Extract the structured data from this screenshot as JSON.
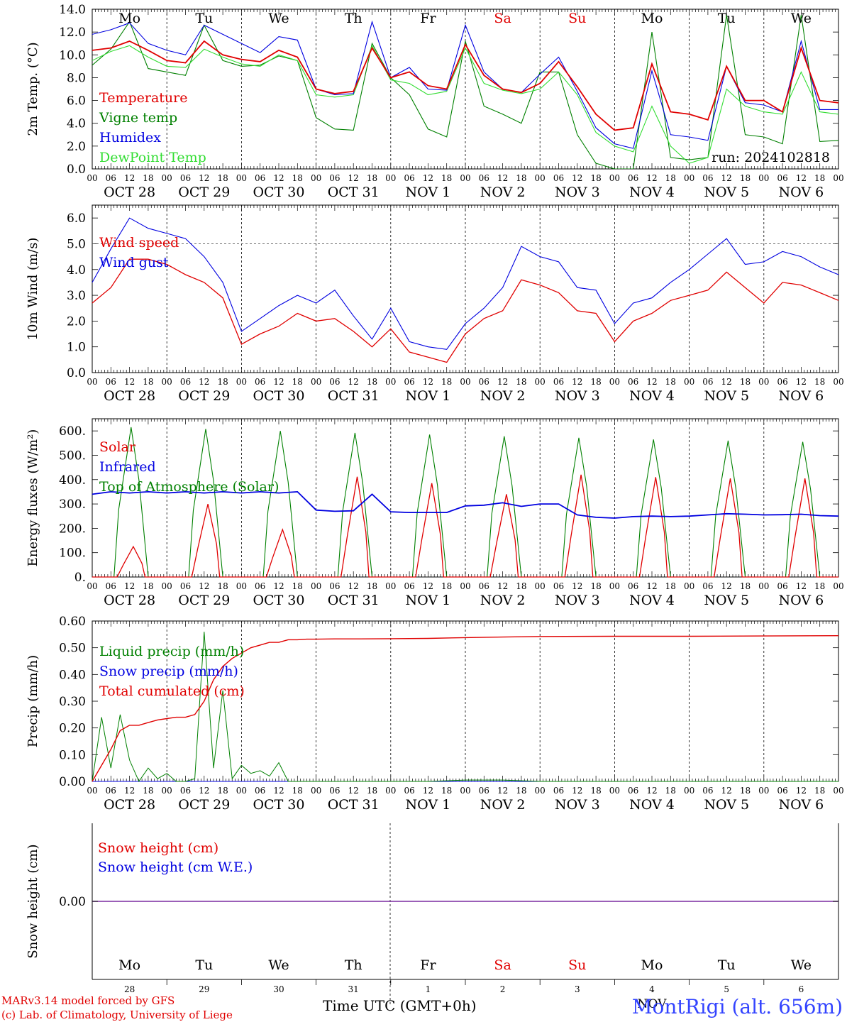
{
  "run_label": "run: 2024102818",
  "days": [
    "Mo",
    "Tu",
    "We",
    "Th",
    "Fr",
    "Sa",
    "Su",
    "Mo",
    "Tu",
    "We"
  ],
  "weekend_days": [
    "Sa",
    "Su"
  ],
  "date_labels": [
    "OCT 28",
    "OCT 29",
    "OCT 30",
    "OCT 31",
    "NOV 1",
    "NOV 2",
    "NOV 3",
    "NOV 4",
    "NOV 5",
    "NOV 6"
  ],
  "day_numbers": [
    "28",
    "29",
    "30",
    "31",
    "1",
    "2",
    "3",
    "4",
    "5",
    "6"
  ],
  "month_label": "NOV",
  "hour_ticks": [
    "00",
    "06",
    "12",
    "18"
  ],
  "x_title": "Time UTC (GMT+0h)",
  "station": "MontRigi (alt. 656m)",
  "credits": [
    "MARv3.14 model forced by GFS",
    "(c) Lab. of Climatology, University of Liege"
  ],
  "colors": {
    "red": "#e00000",
    "green": "#008000",
    "blue": "#0000e0",
    "lightgreen": "#33dd33",
    "purple": "#7a2aa0"
  },
  "chart_data": [
    {
      "type": "line",
      "ylabel": "2m Temp. (°C)",
      "ylim": [
        0,
        14
      ],
      "yticks": [
        "0.0",
        "2.0",
        "4.0",
        "6.0",
        "8.0",
        "10.0",
        "12.0",
        "14.0"
      ],
      "x": [
        0,
        6,
        12,
        18,
        24,
        30,
        36,
        42,
        48,
        54,
        60,
        66,
        72,
        78,
        84,
        90,
        96,
        102,
        108,
        114,
        120,
        126,
        132,
        138,
        144,
        150,
        156,
        162,
        168,
        174,
        180,
        186,
        192,
        198,
        204,
        210,
        216,
        222,
        228,
        234,
        240
      ],
      "series": [
        {
          "name": "Temperature",
          "color": "red",
          "values": [
            10.4,
            10.6,
            11.2,
            10.4,
            9.5,
            9.3,
            11.2,
            10.0,
            9.6,
            9.4,
            10.4,
            9.8,
            7.0,
            6.6,
            6.8,
            10.6,
            8.0,
            8.5,
            7.3,
            7.0,
            10.9,
            8.2,
            7.0,
            6.7,
            7.5,
            9.4,
            7.2,
            4.8,
            3.4,
            3.6,
            9.2,
            5.0,
            4.8,
            4.3,
            9.0,
            6.0,
            6.0,
            5.0,
            10.6,
            6.0,
            5.8
          ]
        },
        {
          "name": "Vigne temp",
          "color": "green",
          "values": [
            9.1,
            10.5,
            12.9,
            8.8,
            8.5,
            8.2,
            12.6,
            9.5,
            9.0,
            9.1,
            9.9,
            9.5,
            4.5,
            3.5,
            3.4,
            11.0,
            8.0,
            6.5,
            3.5,
            2.8,
            11.2,
            5.5,
            4.8,
            4.0,
            8.5,
            8.5,
            3.0,
            0.5,
            0.0,
            0.0,
            12.0,
            1.0,
            0.8,
            1.0,
            13.5,
            3.0,
            2.8,
            2.2,
            13.5,
            2.4,
            2.5
          ]
        },
        {
          "name": "Humidex",
          "color": "blue",
          "values": [
            11.8,
            12.2,
            12.8,
            11.0,
            10.4,
            10.0,
            12.6,
            11.8,
            11.0,
            10.2,
            11.6,
            11.3,
            7.0,
            6.5,
            6.6,
            12.9,
            8.0,
            8.9,
            7.0,
            6.9,
            12.6,
            8.5,
            7.0,
            6.7,
            8.3,
            9.8,
            6.8,
            3.6,
            2.2,
            1.8,
            8.6,
            3.0,
            2.8,
            2.5,
            9.0,
            5.8,
            5.6,
            5.0,
            11.2,
            5.2,
            5.2
          ]
        },
        {
          "name": "DewPoint Temp",
          "color": "lightgreen",
          "values": [
            9.5,
            10.3,
            10.8,
            9.8,
            9.0,
            8.9,
            10.5,
            9.8,
            9.2,
            9.0,
            10.0,
            9.5,
            6.5,
            6.3,
            6.5,
            10.8,
            7.8,
            7.5,
            6.5,
            6.8,
            10.6,
            7.5,
            6.9,
            6.6,
            7.0,
            8.5,
            6.5,
            3.2,
            2.0,
            1.5,
            5.5,
            2.0,
            0.5,
            1.0,
            7.0,
            5.5,
            5.0,
            4.8,
            8.5,
            5.0,
            4.8
          ]
        }
      ]
    },
    {
      "type": "line",
      "ylabel": "10m Wind (m/s)",
      "ylim": [
        0,
        6.5
      ],
      "yticks": [
        "0.0",
        "1.0",
        "2.0",
        "3.0",
        "4.0",
        "5.0",
        "6.0"
      ],
      "x": [
        0,
        6,
        12,
        18,
        24,
        30,
        36,
        42,
        48,
        54,
        60,
        66,
        72,
        78,
        84,
        90,
        96,
        102,
        108,
        114,
        120,
        126,
        132,
        138,
        144,
        150,
        156,
        162,
        168,
        174,
        180,
        186,
        192,
        198,
        204,
        210,
        216,
        222,
        228,
        234,
        240
      ],
      "series": [
        {
          "name": "Wind speed",
          "color": "red",
          "values": [
            2.7,
            3.3,
            4.4,
            4.4,
            4.2,
            3.8,
            3.5,
            2.9,
            1.1,
            1.5,
            1.8,
            2.3,
            2.0,
            2.1,
            1.6,
            1.0,
            1.7,
            0.8,
            0.6,
            0.4,
            1.5,
            2.1,
            2.4,
            3.6,
            3.4,
            3.1,
            2.4,
            2.3,
            1.2,
            2.0,
            2.3,
            2.8,
            3.0,
            3.2,
            3.9,
            3.3,
            2.7,
            3.5,
            3.4,
            3.1,
            2.8
          ]
        },
        {
          "name": "Wind gust",
          "color": "blue",
          "values": [
            3.5,
            4.8,
            6.0,
            5.6,
            5.4,
            5.2,
            4.5,
            3.5,
            1.6,
            2.1,
            2.6,
            3.0,
            2.7,
            3.2,
            2.2,
            1.3,
            2.5,
            1.2,
            1.0,
            0.9,
            1.9,
            2.5,
            3.3,
            4.9,
            4.5,
            4.3,
            3.3,
            3.2,
            1.9,
            2.7,
            2.9,
            3.5,
            4.0,
            4.6,
            5.2,
            4.2,
            4.3,
            4.7,
            4.5,
            4.1,
            3.8
          ]
        }
      ]
    },
    {
      "type": "line",
      "ylabel": "Energy fluxes (W/m²)",
      "ylim": [
        0,
        650
      ],
      "yticks": [
        "0.",
        "100.",
        "200.",
        "300.",
        "400.",
        "500.",
        "600."
      ],
      "day_peaks": [
        {
          "solar": 125,
          "toa": 615
        },
        {
          "solar": 300,
          "toa": 608
        },
        {
          "solar": 195,
          "toa": 600
        },
        {
          "solar": 412,
          "toa": 592
        },
        {
          "solar": 385,
          "toa": 585
        },
        {
          "solar": 340,
          "toa": 578
        },
        {
          "solar": 420,
          "toa": 572
        },
        {
          "solar": 410,
          "toa": 565
        },
        {
          "solar": 405,
          "toa": 560
        },
        {
          "solar": 405,
          "toa": 555
        }
      ],
      "infrared": {
        "x": [
          0,
          6,
          12,
          18,
          24,
          30,
          36,
          42,
          48,
          54,
          60,
          66,
          72,
          78,
          84,
          90,
          96,
          102,
          108,
          114,
          120,
          126,
          132,
          138,
          144,
          150,
          156,
          162,
          168,
          174,
          180,
          186,
          192,
          198,
          204,
          210,
          216,
          222,
          228,
          234,
          240
        ],
        "values": [
          340,
          350,
          345,
          350,
          345,
          350,
          345,
          350,
          345,
          350,
          345,
          350,
          275,
          270,
          272,
          340,
          268,
          265,
          265,
          265,
          292,
          295,
          305,
          290,
          300,
          300,
          255,
          245,
          242,
          248,
          250,
          248,
          250,
          255,
          260,
          258,
          255,
          256,
          258,
          252,
          250
        ]
      },
      "series_names": [
        "Solar",
        "Infrared",
        "Top of Atmosphere (Solar)"
      ],
      "series_colors": [
        "red",
        "blue",
        "green"
      ]
    },
    {
      "type": "line",
      "ylabel": "Precip (mm/h)",
      "ylim": [
        0,
        0.6
      ],
      "yticks": [
        "0.00",
        "0.10",
        "0.20",
        "0.30",
        "0.40",
        "0.50",
        "0.60"
      ],
      "x": [
        0,
        3,
        6,
        9,
        12,
        15,
        18,
        21,
        24,
        27,
        30,
        33,
        36,
        39,
        42,
        45,
        48,
        51,
        54,
        57,
        60,
        63,
        66,
        69,
        72,
        78,
        84,
        96,
        108,
        120,
        132,
        144,
        168,
        192,
        216,
        240
      ],
      "series": [
        {
          "name": "Liquid precip (mm/h)",
          "color": "green",
          "values": [
            0.0,
            0.24,
            0.05,
            0.25,
            0.08,
            0.0,
            0.05,
            0.01,
            0.03,
            0.0,
            0.0,
            0.01,
            0.56,
            0.05,
            0.34,
            0.01,
            0.06,
            0.03,
            0.04,
            0.02,
            0.07,
            0.0,
            0.0,
            0.0,
            0.0,
            0.0,
            0.0,
            0.0,
            0.0,
            0.005,
            0.005,
            0.0,
            0.0,
            0.0,
            0.0,
            0.0
          ]
        },
        {
          "name": "Snow precip (mm/h)",
          "color": "blue",
          "values": [
            0,
            0,
            0,
            0,
            0,
            0,
            0,
            0,
            0,
            0,
            0,
            0,
            0,
            0,
            0,
            0,
            0,
            0,
            0,
            0,
            0,
            0,
            0,
            0,
            0,
            0,
            0,
            0,
            0,
            0,
            0,
            0,
            0,
            0,
            0,
            0
          ]
        },
        {
          "name": "Total cumulated (cm)",
          "color": "red",
          "values": [
            0.0,
            0.06,
            0.12,
            0.19,
            0.21,
            0.21,
            0.22,
            0.23,
            0.235,
            0.24,
            0.24,
            0.25,
            0.3,
            0.38,
            0.43,
            0.46,
            0.48,
            0.5,
            0.51,
            0.52,
            0.52,
            0.53,
            0.53,
            0.532,
            0.532,
            0.533,
            0.533,
            0.534,
            0.535,
            0.538,
            0.54,
            0.542,
            0.543,
            0.543,
            0.544,
            0.545
          ]
        }
      ]
    },
    {
      "type": "line",
      "ylabel": "Snow height (cm)",
      "ytick": "0.00",
      "series": [
        {
          "name": "Snow height (cm)",
          "color": "red",
          "values": [
            0,
            0
          ]
        },
        {
          "name": "Snow height (cm W.E.)",
          "color": "blue",
          "values": [
            0,
            0
          ]
        }
      ]
    }
  ]
}
